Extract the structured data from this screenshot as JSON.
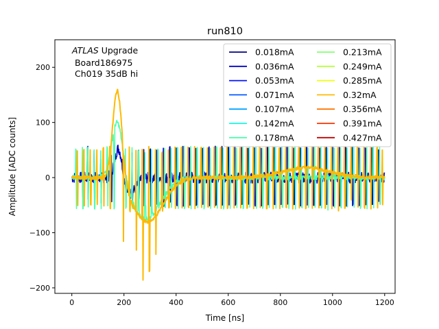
{
  "chart_data": {
    "type": "line",
    "title": "run810",
    "xlabel": "Time [ns]",
    "ylabel": "Amplitude [ADC counts]",
    "xlim": [
      -65,
      1240
    ],
    "ylim": [
      -210,
      250
    ],
    "xticks": [
      0,
      200,
      400,
      600,
      800,
      1000,
      1200
    ],
    "yticks": [
      -200,
      -100,
      0,
      100,
      200
    ],
    "grid": false,
    "annotation": {
      "italic": "ATLAS",
      "rest": " Upgrade",
      "line2": " Board186975",
      "line3": " Ch019 35dB hi"
    },
    "legend_position": "top-right",
    "legend_columns": 2,
    "series": [
      {
        "name": "0.018mA",
        "color": "#000080"
      },
      {
        "name": "0.036mA",
        "color": "#0000c4"
      },
      {
        "name": "0.053mA",
        "color": "#0010ff"
      },
      {
        "name": "0.071mA",
        "color": "#0058ff"
      },
      {
        "name": "0.107mA",
        "color": "#00a4ff"
      },
      {
        "name": "0.142mA",
        "color": "#13fce3"
      },
      {
        "name": "0.178mA",
        "color": "#4bffac"
      },
      {
        "name": "0.213mA",
        "color": "#83ff73"
      },
      {
        "name": "0.249mA",
        "color": "#b7ff40"
      },
      {
        "name": "0.285mA",
        "color": "#efff08"
      },
      {
        "name": "0.32mA",
        "color": "#ffb900"
      },
      {
        "name": "0.356mA",
        "color": "#ff7300"
      },
      {
        "name": "0.391mA",
        "color": "#ff3000"
      },
      {
        "name": "0.427mA",
        "color": "#c40000"
      }
    ],
    "drawn_series": [
      {
        "color": "#0000c4",
        "width": 1.6,
        "pulse": {
          "x0": 180,
          "a1": 60,
          "w1": 15,
          "x1": 220,
          "a2": -30,
          "w2": 25
        },
        "baseline_noise": 10,
        "spikes": [
          [
            15,
            10,
            -20
          ],
          [
            40,
            15,
            -35
          ],
          [
            60,
            55,
            -40
          ],
          [
            85,
            50,
            -40
          ],
          [
            110,
            35,
            -45
          ],
          [
            150,
            40,
            -45
          ],
          [
            230,
            45,
            -50
          ],
          [
            255,
            48,
            -40
          ],
          [
            275,
            50,
            -50
          ],
          [
            300,
            50,
            -50
          ],
          [
            325,
            50,
            -50
          ],
          [
            350,
            55,
            -50
          ],
          [
            375,
            55,
            -45
          ],
          [
            400,
            55,
            -50
          ],
          [
            425,
            55,
            -50
          ],
          [
            450,
            55,
            -50
          ],
          [
            475,
            55,
            -50
          ],
          [
            500,
            55,
            -50
          ],
          [
            525,
            55,
            -50
          ],
          [
            550,
            55,
            -50
          ],
          [
            575,
            55,
            -50
          ],
          [
            600,
            55,
            -50
          ],
          [
            625,
            55,
            -50
          ],
          [
            650,
            55,
            -50
          ],
          [
            675,
            55,
            -50
          ],
          [
            700,
            55,
            -50
          ],
          [
            725,
            55,
            -50
          ],
          [
            750,
            55,
            -50
          ],
          [
            775,
            55,
            -50
          ],
          [
            800,
            55,
            -50
          ],
          [
            825,
            55,
            -50
          ],
          [
            850,
            55,
            -50
          ],
          [
            875,
            55,
            -50
          ],
          [
            900,
            55,
            -50
          ],
          [
            925,
            55,
            -50
          ],
          [
            950,
            55,
            -50
          ],
          [
            975,
            55,
            -50
          ],
          [
            1000,
            55,
            -50
          ],
          [
            1025,
            55,
            -50
          ],
          [
            1050,
            55,
            -50
          ],
          [
            1075,
            55,
            -50
          ],
          [
            1100,
            55,
            -50
          ],
          [
            1125,
            55,
            -50
          ],
          [
            1150,
            55,
            -50
          ],
          [
            1175,
            50,
            -45
          ]
        ]
      },
      {
        "color": "#4bffac",
        "width": 1.6,
        "pulse": {
          "x0": 175,
          "a1": 110,
          "w1": 22,
          "x1": 285,
          "a2": -75,
          "w2": 55
        },
        "baseline_noise": 4,
        "spikes": [
          [
            15,
            50,
            -55
          ],
          [
            40,
            55,
            -55
          ],
          [
            60,
            55,
            -55
          ],
          [
            85,
            50,
            -55
          ],
          [
            110,
            50,
            -55
          ],
          [
            135,
            55,
            -50
          ],
          [
            160,
            55,
            -55
          ],
          [
            205,
            50,
            -55
          ],
          [
            230,
            55,
            -55
          ],
          [
            255,
            50,
            -50
          ],
          [
            280,
            45,
            -50
          ],
          [
            305,
            50,
            -50
          ],
          [
            330,
            50,
            -55
          ],
          [
            355,
            55,
            -55
          ],
          [
            380,
            55,
            -55
          ],
          [
            405,
            55,
            -55
          ],
          [
            430,
            55,
            -55
          ],
          [
            455,
            55,
            -55
          ],
          [
            480,
            55,
            -55
          ],
          [
            505,
            55,
            -55
          ],
          [
            530,
            55,
            -55
          ],
          [
            555,
            55,
            -55
          ],
          [
            580,
            55,
            -55
          ],
          [
            605,
            55,
            -55
          ],
          [
            630,
            55,
            -55
          ],
          [
            655,
            55,
            -55
          ],
          [
            680,
            55,
            -55
          ],
          [
            705,
            55,
            -55
          ],
          [
            730,
            55,
            -55
          ],
          [
            755,
            55,
            -55
          ],
          [
            780,
            55,
            -55
          ],
          [
            805,
            55,
            -55
          ],
          [
            830,
            55,
            -55
          ],
          [
            855,
            55,
            -55
          ],
          [
            880,
            55,
            -55
          ],
          [
            905,
            55,
            -55
          ],
          [
            930,
            55,
            -55
          ],
          [
            955,
            55,
            -55
          ],
          [
            980,
            55,
            -60
          ],
          [
            1005,
            55,
            -55
          ],
          [
            1030,
            55,
            -55
          ],
          [
            1055,
            55,
            -55
          ],
          [
            1080,
            55,
            -55
          ],
          [
            1105,
            55,
            -55
          ],
          [
            1130,
            55,
            -55
          ],
          [
            1155,
            55,
            -55
          ],
          [
            1180,
            55,
            -50
          ]
        ]
      },
      {
        "color": "#ffb900",
        "width": 2.0,
        "pulse": {
          "x0": 175,
          "a1": 170,
          "w1": 18,
          "x1": 290,
          "a2": -80,
          "w2": 60
        },
        "baseline_noise": 3,
        "bump": {
          "x": 900,
          "a": 18,
          "w": 90
        },
        "spikes": [
          [
            20,
            50,
            -50
          ],
          [
            45,
            50,
            -50
          ],
          [
            70,
            50,
            -50
          ],
          [
            95,
            50,
            -50
          ],
          [
            120,
            55,
            -50
          ],
          [
            145,
            55,
            -55
          ],
          [
            195,
            50,
            -115
          ],
          [
            220,
            55,
            -60
          ],
          [
            245,
            50,
            -130
          ],
          [
            270,
            50,
            -185
          ],
          [
            295,
            55,
            -170
          ],
          [
            320,
            50,
            -140
          ],
          [
            345,
            45,
            -60
          ],
          [
            370,
            50,
            -55
          ],
          [
            395,
            55,
            -55
          ],
          [
            420,
            55,
            -55
          ],
          [
            445,
            55,
            -55
          ],
          [
            470,
            55,
            -55
          ],
          [
            495,
            55,
            -55
          ],
          [
            520,
            55,
            -55
          ],
          [
            545,
            55,
            -55
          ],
          [
            570,
            55,
            -55
          ],
          [
            595,
            55,
            -55
          ],
          [
            620,
            55,
            -55
          ],
          [
            645,
            55,
            -55
          ],
          [
            670,
            55,
            -55
          ],
          [
            695,
            55,
            -55
          ],
          [
            720,
            55,
            -55
          ],
          [
            745,
            55,
            -55
          ],
          [
            770,
            55,
            -55
          ],
          [
            795,
            55,
            -55
          ],
          [
            820,
            55,
            -55
          ],
          [
            845,
            55,
            -55
          ],
          [
            870,
            55,
            -55
          ],
          [
            895,
            55,
            -55
          ],
          [
            920,
            55,
            -55
          ],
          [
            945,
            55,
            -55
          ],
          [
            970,
            55,
            -55
          ],
          [
            995,
            55,
            -55
          ],
          [
            1020,
            55,
            -60
          ],
          [
            1045,
            55,
            -55
          ],
          [
            1070,
            55,
            -40
          ],
          [
            1095,
            55,
            -55
          ],
          [
            1120,
            55,
            -55
          ],
          [
            1145,
            55,
            -55
          ],
          [
            1170,
            55,
            -55
          ],
          [
            1190,
            50,
            -50
          ]
        ]
      }
    ]
  }
}
